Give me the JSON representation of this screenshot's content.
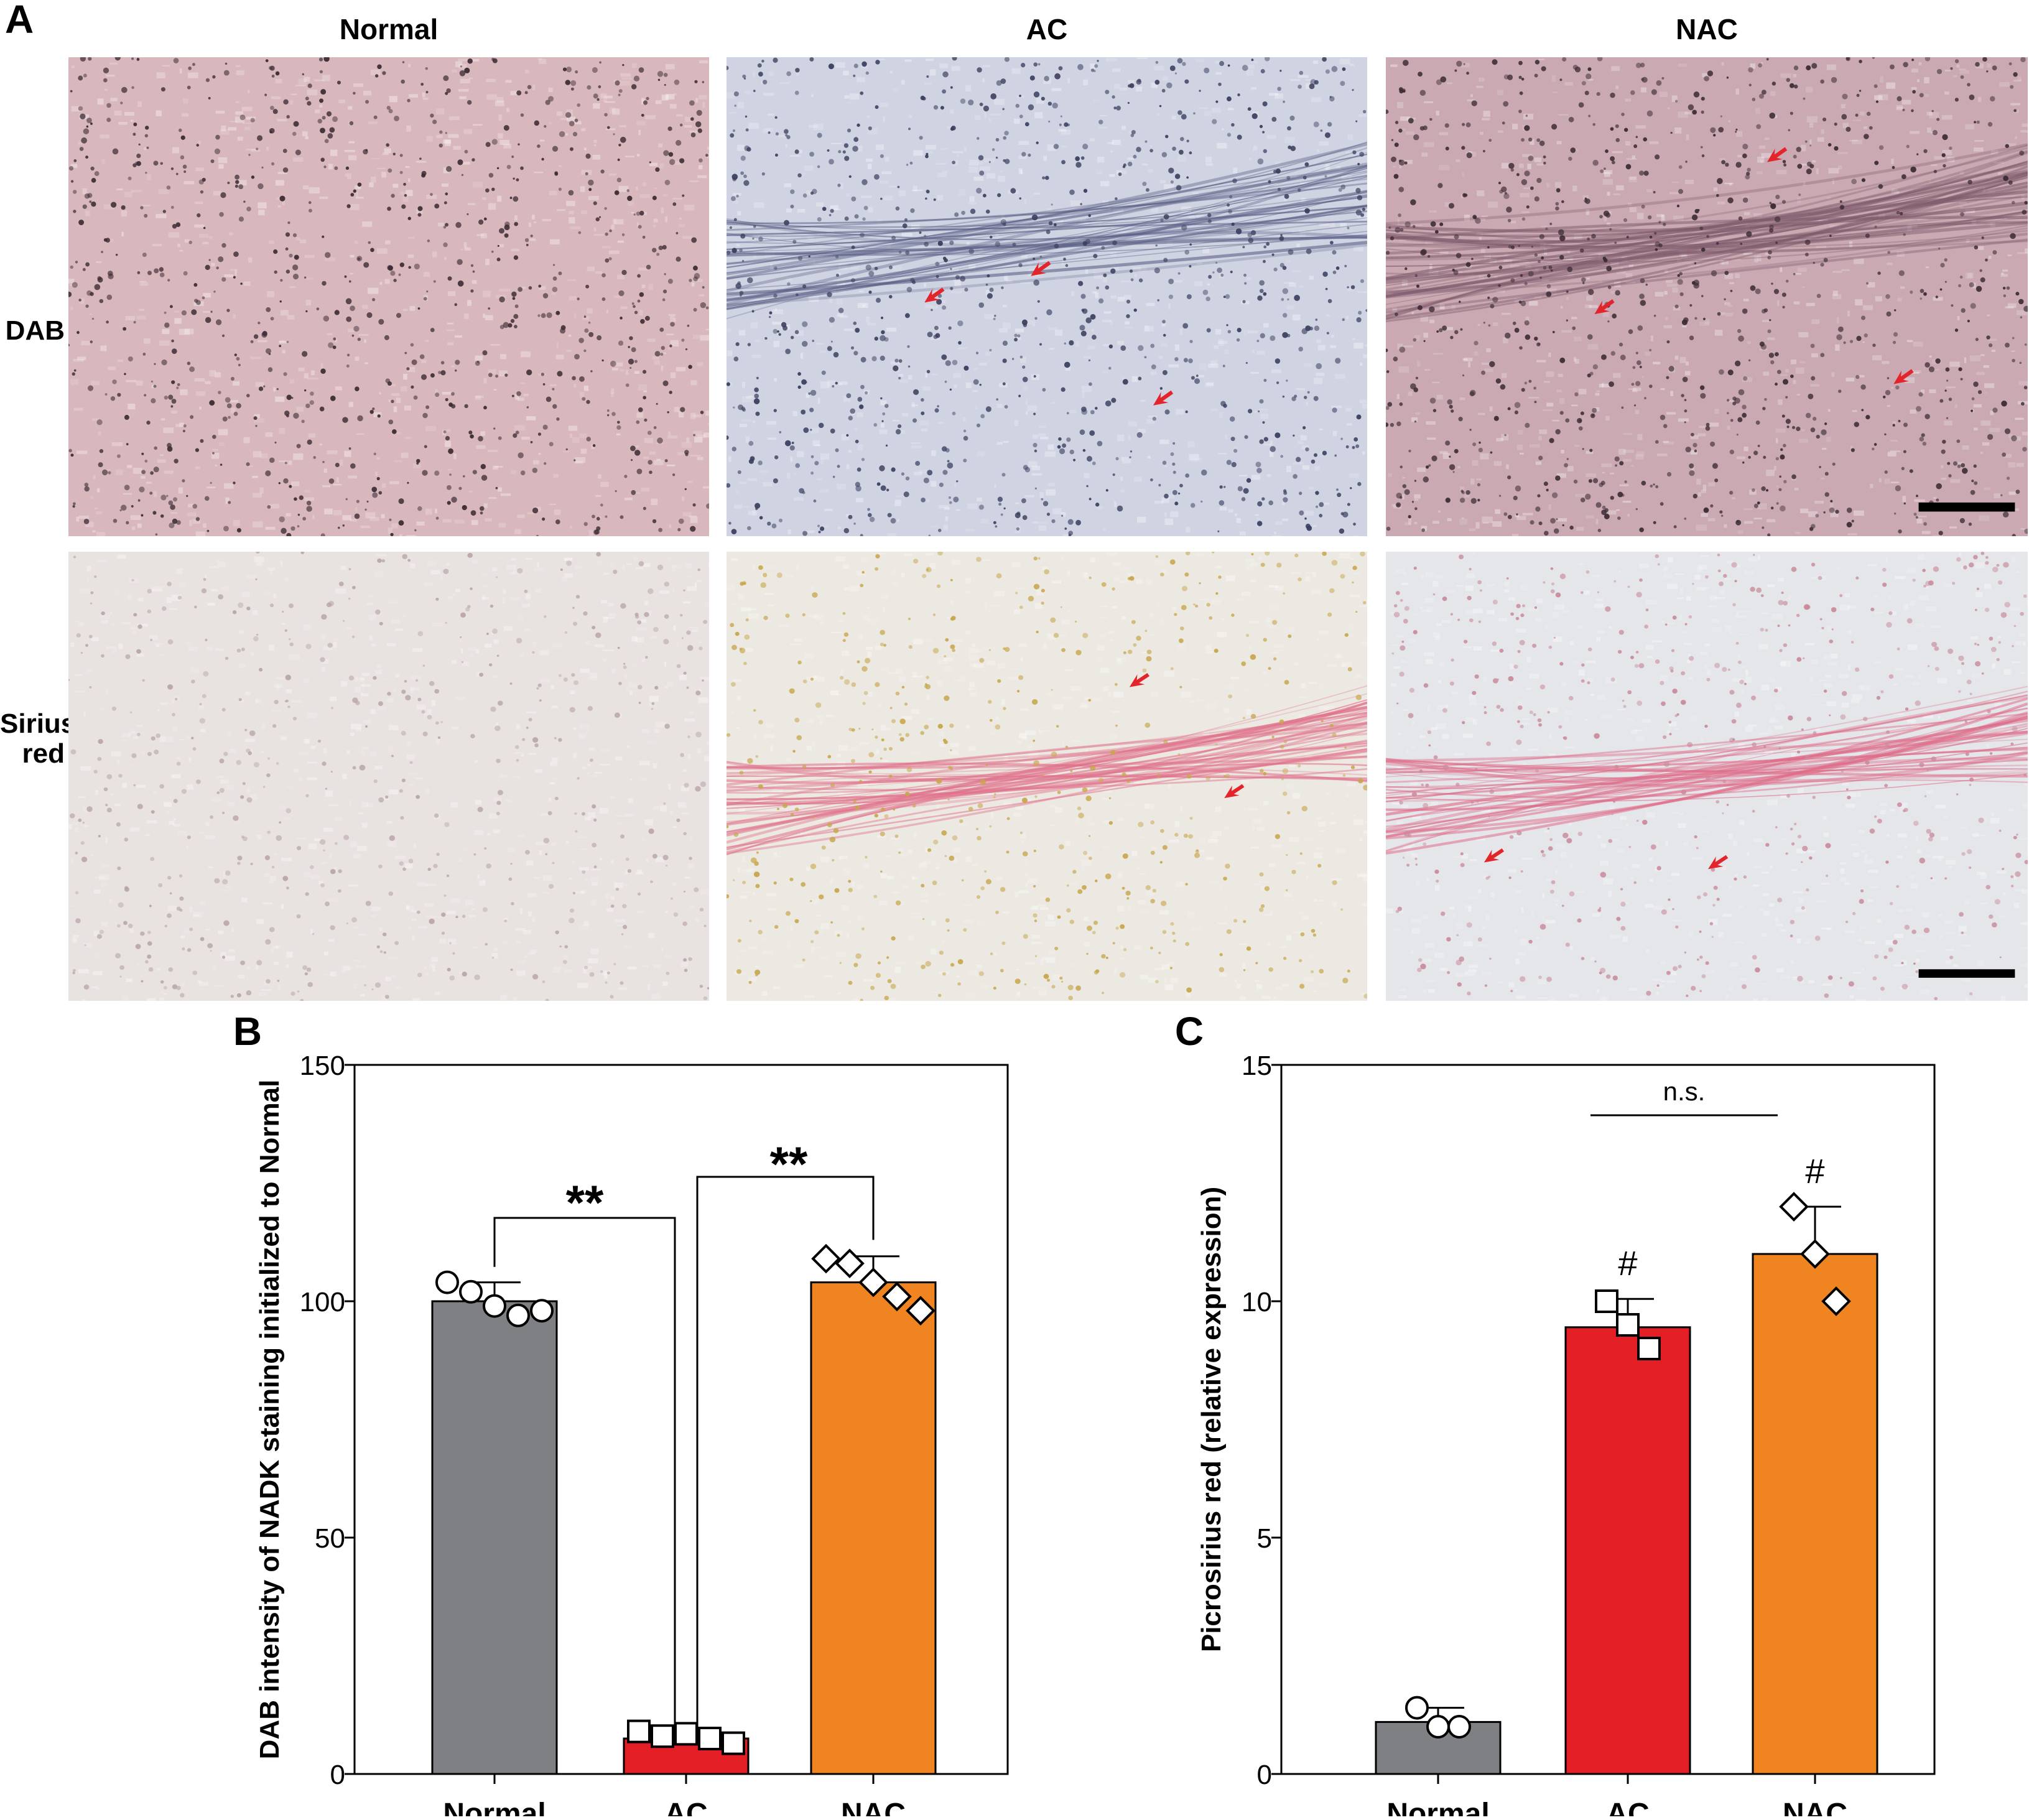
{
  "figure": {
    "panel_a": {
      "letter": "A",
      "column_titles": [
        "Normal",
        "AC",
        "NAC"
      ],
      "row_labels": [
        [
          "DAB"
        ],
        [
          "Sirius",
          "red"
        ]
      ],
      "tiles": [
        {
          "row": "DAB",
          "group": "Normal",
          "base": "#d9b8bd",
          "dot": "#3a2a33",
          "fiber": "",
          "arrows": 0,
          "scale_bar": false
        },
        {
          "row": "DAB",
          "group": "AC",
          "base": "#cfd3e2",
          "dot": "#3a3d5c",
          "fiber": "#5b5f85",
          "arrows": 3,
          "scale_bar": false
        },
        {
          "row": "DAB",
          "group": "NAC",
          "base": "#caa9b2",
          "dot": "#3a2a33",
          "fiber": "#7e5a6b",
          "arrows": 3,
          "scale_bar": true
        },
        {
          "row": "Sirius red",
          "group": "Normal",
          "base": "#e8e2e0",
          "dot": "#b9a5a8",
          "fiber": "",
          "arrows": 0,
          "scale_bar": false
        },
        {
          "row": "Sirius red",
          "group": "AC",
          "base": "#ece8e2",
          "dot": "#c7a64a",
          "fiber": "#e0708a",
          "arrows": 2,
          "scale_bar": false
        },
        {
          "row": "Sirius red",
          "group": "NAC",
          "base": "#e4e6ea",
          "dot": "#c98a9a",
          "fiber": "#de6b88",
          "arrows": 2,
          "scale_bar": true
        }
      ],
      "arrow_color": "#e3242b"
    },
    "colors": {
      "Normal": "#7f8083",
      "AC": "#e31e24",
      "NAC": "#f08421"
    }
  },
  "chart_data": [
    {
      "panel": "B",
      "type": "bar",
      "categories": [
        "Normal",
        "AC",
        "NAC"
      ],
      "values": [
        100,
        7.5,
        104
      ],
      "error": [
        4,
        1.5,
        5.5
      ],
      "points": [
        [
          104,
          102,
          99,
          97,
          98
        ],
        [
          9,
          8,
          8.5,
          7.5,
          6.5
        ],
        [
          109,
          108,
          104,
          101,
          98
        ]
      ],
      "markers": [
        "circle",
        "square",
        "diamond"
      ],
      "ylabel": "DAB intensity of NADK staining initialized to Normal",
      "ylim": [
        0,
        150
      ],
      "yticks": [
        "0",
        "50",
        "100",
        "150"
      ],
      "annotations": [
        {
          "from": "Normal",
          "to": "AC",
          "label": "**"
        },
        {
          "from": "AC",
          "to": "NAC",
          "label": "**"
        }
      ]
    },
    {
      "panel": "C",
      "type": "bar",
      "categories": [
        "Normal",
        "AC",
        "NAC"
      ],
      "values": [
        1.1,
        9.45,
        11
      ],
      "error": [
        0.3,
        0.6,
        1.0
      ],
      "points": [
        [
          1.4,
          1.0,
          1.0
        ],
        [
          10.0,
          9.5,
          9.0
        ],
        [
          12.0,
          11.0,
          10.0
        ]
      ],
      "markers": [
        "circle",
        "square",
        "diamond"
      ],
      "ylabel": "Picrosirius red (relative expression)",
      "ylim": [
        0,
        15
      ],
      "yticks": [
        "0",
        "5",
        "10",
        "15"
      ],
      "bar_marks": [
        "",
        "#",
        "#"
      ],
      "comparison": {
        "from": "AC",
        "to": "NAC",
        "label": "n.s."
      }
    }
  ]
}
